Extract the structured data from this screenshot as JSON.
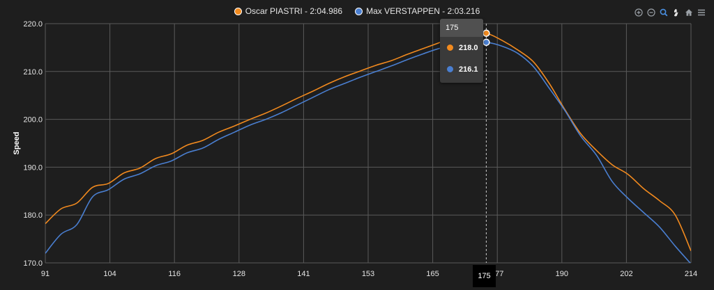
{
  "legend": {
    "items": [
      {
        "label": "Oscar PIASTRI - 2:04.986",
        "color": "#f28a1e"
      },
      {
        "label": "Max VERSTAPPEN - 2:03.216",
        "color": "#4a7fd1"
      }
    ]
  },
  "toolbar": {
    "icons": [
      "zoom-in-icon",
      "zoom-out-icon",
      "zoom-select-icon",
      "pan-hand-icon",
      "home-icon",
      "menu-icon"
    ]
  },
  "tooltip": {
    "title": "175",
    "rows": [
      {
        "value": "218.0",
        "color": "#f28a1e"
      },
      {
        "value": "216.1",
        "color": "#4a7fd1"
      }
    ]
  },
  "crosshair_label": "175",
  "chart_data": {
    "type": "line",
    "ylabel": "Speed",
    "xlabel": "",
    "xlim": [
      91,
      214
    ],
    "ylim": [
      170,
      220
    ],
    "x_ticks": [
      "91",
      "104",
      "116",
      "128",
      "141",
      "153",
      "165",
      "177",
      "190",
      "202",
      "214"
    ],
    "y_ticks": [
      "170.0",
      "180.0",
      "190.0",
      "200.0",
      "210.0",
      "220.0"
    ],
    "grid": true,
    "legend_position": "top-center",
    "series": [
      {
        "name": "Oscar PIASTRI - 2:04.986",
        "color": "#f28a1e",
        "x": [
          91,
          94,
          97,
          100,
          103,
          106,
          109,
          112,
          115,
          118,
          121,
          124,
          127,
          130,
          133,
          136,
          139,
          142,
          145,
          148,
          151,
          154,
          157,
          160,
          163,
          166,
          169,
          172,
          175,
          178,
          181,
          184,
          187,
          190,
          193,
          196,
          199,
          202,
          205,
          208,
          211,
          214
        ],
        "y": [
          178.2,
          181.3,
          182.5,
          185.8,
          186.6,
          188.8,
          189.8,
          191.8,
          192.8,
          194.6,
          195.6,
          197.3,
          198.6,
          200.0,
          201.3,
          202.8,
          204.4,
          205.9,
          207.5,
          208.9,
          210.1,
          211.3,
          212.3,
          213.6,
          214.8,
          216.0,
          217.3,
          218.0,
          218.0,
          216.5,
          214.5,
          212.0,
          207.5,
          202.0,
          197.0,
          193.5,
          190.5,
          188.5,
          185.5,
          183.0,
          180.0,
          172.5
        ]
      },
      {
        "name": "Max VERSTAPPEN - 2:03.216",
        "color": "#4a7fd1",
        "x": [
          91,
          94,
          97,
          100,
          103,
          106,
          109,
          112,
          115,
          118,
          121,
          124,
          127,
          130,
          133,
          136,
          139,
          142,
          145,
          148,
          151,
          154,
          157,
          160,
          163,
          166,
          169,
          172,
          175,
          178,
          181,
          184,
          187,
          190,
          193,
          196,
          199,
          202,
          205,
          208,
          211,
          214
        ],
        "y": [
          172.0,
          176.0,
          178.0,
          183.8,
          185.3,
          187.5,
          188.6,
          190.3,
          191.3,
          193.0,
          194.0,
          195.8,
          197.3,
          198.8,
          200.0,
          201.4,
          203.0,
          204.6,
          206.2,
          207.5,
          208.8,
          210.0,
          211.2,
          212.5,
          213.7,
          214.8,
          215.5,
          216.0,
          216.1,
          215.3,
          213.8,
          211.0,
          206.5,
          201.8,
          196.5,
          192.5,
          187.0,
          183.5,
          180.5,
          177.5,
          173.5,
          169.8
        ]
      }
    ]
  }
}
